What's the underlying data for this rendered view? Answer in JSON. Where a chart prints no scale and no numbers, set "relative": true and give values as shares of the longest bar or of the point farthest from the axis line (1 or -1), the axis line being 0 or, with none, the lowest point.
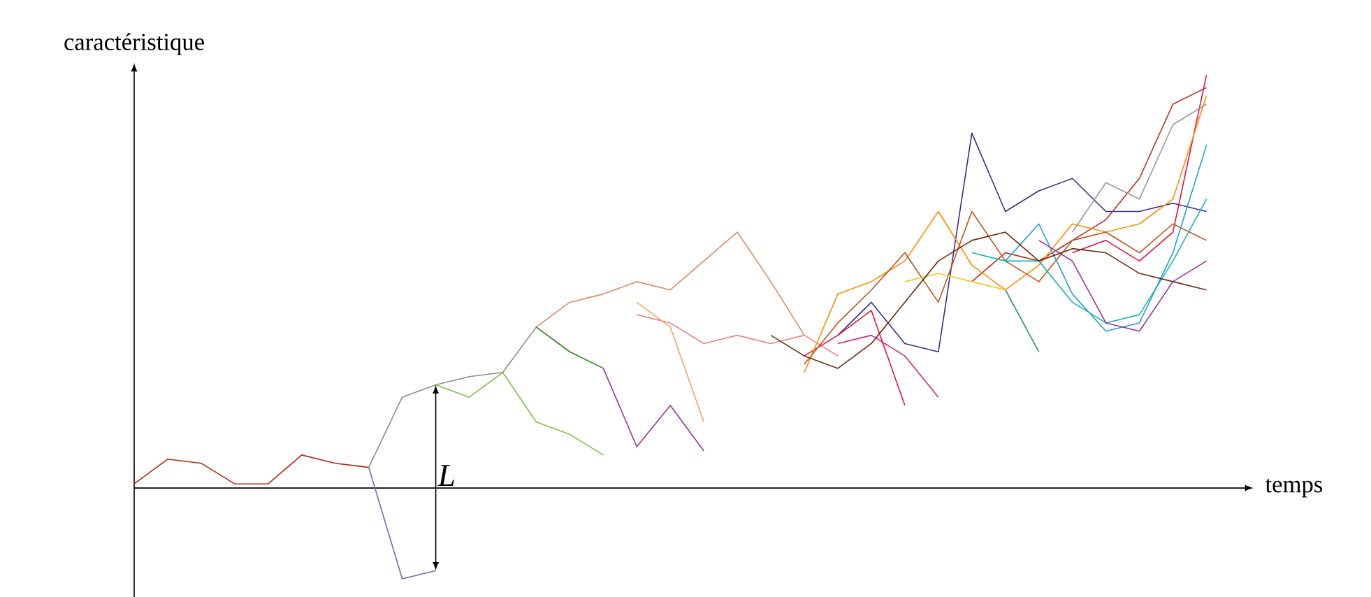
{
  "chart_data": {
    "type": "line",
    "relative": true,
    "xlabel": "temps",
    "ylabel": "caractéristique",
    "annotations": [
      "L"
    ],
    "categories": [
      null,
      null,
      null,
      null,
      null,
      null,
      null,
      null,
      null,
      null,
      null,
      null,
      null,
      null,
      null,
      null,
      null,
      null,
      null,
      null,
      null,
      null,
      null,
      null,
      null,
      null,
      null,
      null,
      null,
      null,
      null,
      null,
      null
    ],
    "series": [
      {
        "color": "#b02a10",
        "values": [
          0.01,
          0.07,
          0.06,
          0.01,
          0.01,
          0.08,
          0.06,
          0.05,
          null,
          null,
          null,
          null,
          null,
          null,
          null,
          null,
          null,
          null,
          null,
          null,
          null,
          null,
          null,
          null,
          null,
          null,
          null,
          null,
          null,
          null,
          null,
          null,
          null
        ]
      },
      {
        "color": "#8c8c8c",
        "values": [
          null,
          null,
          null,
          null,
          null,
          null,
          null,
          0.05,
          0.22,
          0.25,
          0.27,
          0.28,
          0.39,
          null,
          null,
          null,
          null,
          null,
          null,
          null,
          null,
          null,
          null,
          null,
          null,
          null,
          null,
          null,
          null,
          null,
          null,
          null,
          null
        ]
      },
      {
        "color": "#6a6ab5",
        "values": [
          null,
          null,
          null,
          null,
          null,
          null,
          null,
          0.05,
          -0.22,
          -0.2,
          null,
          null,
          null,
          null,
          null,
          null,
          null,
          null,
          null,
          null,
          null,
          null,
          null,
          null,
          null,
          null,
          null,
          null,
          null,
          null,
          null,
          null,
          null
        ]
      },
      {
        "color": "#7dc242",
        "values": [
          null,
          null,
          null,
          null,
          null,
          null,
          null,
          null,
          null,
          0.25,
          0.22,
          0.28,
          0.16,
          0.13,
          0.08,
          null,
          null,
          null,
          null,
          null,
          null,
          null,
          null,
          null,
          null,
          null,
          null,
          null,
          null,
          null,
          null,
          null,
          null
        ]
      },
      {
        "color": "#2e7d1e",
        "values": [
          null,
          null,
          null,
          null,
          null,
          null,
          null,
          null,
          null,
          null,
          null,
          null,
          0.39,
          0.33,
          0.29,
          null,
          null,
          null,
          null,
          null,
          null,
          null,
          null,
          null,
          null,
          null,
          null,
          null,
          null,
          null,
          null,
          null,
          null
        ]
      },
      {
        "color": "#d98c5f",
        "values": [
          null,
          null,
          null,
          null,
          null,
          null,
          null,
          null,
          null,
          null,
          null,
          null,
          0.39,
          0.45,
          0.47,
          0.5,
          0.48,
          0.55,
          0.62,
          0.5,
          0.37,
          null,
          null,
          null,
          null,
          null,
          null,
          null,
          null,
          null,
          null,
          null,
          null
        ]
      },
      {
        "color": "#f08080",
        "values": [
          null,
          null,
          null,
          null,
          null,
          null,
          null,
          null,
          null,
          null,
          null,
          null,
          null,
          null,
          null,
          0.42,
          0.4,
          0.35,
          0.37,
          0.35,
          0.37,
          0.32,
          null,
          null,
          null,
          null,
          null,
          null,
          null,
          null,
          null,
          null,
          null
        ]
      },
      {
        "color": "#f5a55a",
        "values": [
          null,
          null,
          null,
          null,
          null,
          null,
          null,
          null,
          null,
          null,
          null,
          null,
          null,
          null,
          null,
          0.45,
          0.39,
          0.16,
          null,
          null,
          null,
          null,
          null,
          null,
          null,
          null,
          null,
          null,
          null,
          null,
          null,
          null,
          null
        ]
      },
      {
        "color": "#993399",
        "values": [
          null,
          null,
          null,
          null,
          null,
          null,
          null,
          null,
          null,
          null,
          null,
          null,
          null,
          null,
          0.29,
          0.1,
          0.2,
          0.09,
          null,
          null,
          null,
          null,
          null,
          null,
          null,
          null,
          null,
          null,
          null,
          null,
          null,
          null,
          null
        ]
      },
      {
        "color": "#3d2a8c",
        "values": [
          null,
          null,
          null,
          null,
          null,
          null,
          null,
          null,
          null,
          null,
          null,
          null,
          null,
          null,
          null,
          null,
          null,
          null,
          null,
          null,
          null,
          0.37,
          0.45,
          0.35,
          0.33,
          0.86,
          0.67,
          0.72,
          0.75,
          0.67,
          0.67,
          0.69,
          0.67
        ]
      },
      {
        "color": "#e8112d",
        "values": [
          null,
          null,
          null,
          null,
          null,
          null,
          null,
          null,
          null,
          null,
          null,
          null,
          null,
          null,
          null,
          null,
          null,
          null,
          null,
          null,
          0.32,
          0.37,
          0.43,
          0.2,
          null,
          null,
          null,
          null,
          null,
          null,
          null,
          null,
          null
        ]
      },
      {
        "color": "#b5301a",
        "values": [
          null,
          null,
          null,
          null,
          null,
          null,
          null,
          null,
          null,
          null,
          null,
          null,
          null,
          null,
          null,
          null,
          null,
          null,
          null,
          null,
          null,
          null,
          null,
          null,
          null,
          0.5,
          0.57,
          0.55,
          0.6,
          0.65,
          0.75,
          0.93,
          0.97
        ]
      },
      {
        "color": "#e01040",
        "values": [
          null,
          null,
          null,
          null,
          null,
          null,
          null,
          null,
          null,
          null,
          null,
          null,
          null,
          null,
          null,
          null,
          null,
          null,
          null,
          null,
          null,
          null,
          null,
          null,
          null,
          null,
          null,
          null,
          0.57,
          0.6,
          0.55,
          0.62,
          1.0
        ]
      },
      {
        "color": "#d6266e",
        "values": [
          null,
          null,
          null,
          null,
          null,
          null,
          null,
          null,
          null,
          null,
          null,
          null,
          null,
          null,
          null,
          null,
          null,
          null,
          null,
          null,
          null,
          0.35,
          0.37,
          0.32,
          0.22,
          null,
          null,
          null,
          null,
          null,
          null,
          null,
          null
        ]
      },
      {
        "color": "#ff8c00",
        "values": [
          null,
          null,
          null,
          null,
          null,
          null,
          null,
          null,
          null,
          null,
          null,
          null,
          null,
          null,
          null,
          null,
          null,
          null,
          null,
          null,
          0.28,
          0.47,
          0.5,
          0.55,
          0.67,
          0.54,
          0.48,
          0.54,
          0.64,
          0.62,
          0.64,
          0.7,
          0.95
        ]
      },
      {
        "color": "#c0501a",
        "values": [
          null,
          null,
          null,
          null,
          null,
          null,
          null,
          null,
          null,
          null,
          null,
          null,
          null,
          null,
          null,
          null,
          null,
          null,
          null,
          null,
          0.3,
          0.4,
          0.48,
          0.57,
          0.45,
          0.67,
          0.55,
          0.5,
          0.6,
          0.62,
          0.57,
          0.64,
          0.6
        ]
      },
      {
        "color": "#1ea0d8",
        "values": [
          null,
          null,
          null,
          null,
          null,
          null,
          null,
          null,
          null,
          null,
          null,
          null,
          null,
          null,
          null,
          null,
          null,
          null,
          null,
          null,
          null,
          null,
          null,
          null,
          null,
          null,
          0.55,
          0.64,
          0.47,
          0.38,
          0.4,
          0.57,
          0.83
        ]
      },
      {
        "color": "#14b4b4",
        "values": [
          null,
          null,
          null,
          null,
          null,
          null,
          null,
          null,
          null,
          null,
          null,
          null,
          null,
          null,
          null,
          null,
          null,
          null,
          null,
          null,
          null,
          null,
          null,
          null,
          null,
          0.57,
          0.55,
          0.55,
          0.45,
          0.4,
          0.42,
          0.55,
          0.7
        ]
      },
      {
        "color": "#f2c81e",
        "values": [
          null,
          null,
          null,
          null,
          null,
          null,
          null,
          null,
          null,
          null,
          null,
          null,
          null,
          null,
          null,
          null,
          null,
          null,
          null,
          null,
          null,
          null,
          null,
          0.5,
          0.52,
          0.5,
          0.48,
          null,
          null,
          null,
          null,
          null,
          null
        ]
      },
      {
        "color": "#1a9a50",
        "values": [
          null,
          null,
          null,
          null,
          null,
          null,
          null,
          null,
          null,
          null,
          null,
          null,
          null,
          null,
          null,
          null,
          null,
          null,
          null,
          null,
          null,
          null,
          null,
          null,
          null,
          null,
          0.48,
          0.33,
          null,
          null,
          null,
          null,
          null
        ]
      },
      {
        "color": "#9b30a0",
        "values": [
          null,
          null,
          null,
          null,
          null,
          null,
          null,
          null,
          null,
          null,
          null,
          null,
          null,
          null,
          null,
          null,
          null,
          null,
          null,
          null,
          null,
          null,
          null,
          null,
          null,
          null,
          null,
          0.6,
          0.55,
          0.4,
          0.38,
          0.5,
          0.55
        ]
      },
      {
        "color": "#999999",
        "values": [
          null,
          null,
          null,
          null,
          null,
          null,
          null,
          null,
          null,
          null,
          null,
          null,
          null,
          null,
          null,
          null,
          null,
          null,
          null,
          null,
          null,
          null,
          null,
          null,
          null,
          null,
          null,
          null,
          0.62,
          0.74,
          0.7,
          0.88,
          0.93
        ]
      },
      {
        "color": "#6b2c0b",
        "values": [
          null,
          null,
          null,
          null,
          null,
          null,
          null,
          null,
          null,
          null,
          null,
          null,
          null,
          null,
          null,
          null,
          null,
          null,
          null,
          0.37,
          0.32,
          0.29,
          0.35,
          0.45,
          0.55,
          0.6,
          0.62,
          0.55,
          0.58,
          0.57,
          0.52,
          0.5,
          0.48
        ]
      }
    ]
  }
}
